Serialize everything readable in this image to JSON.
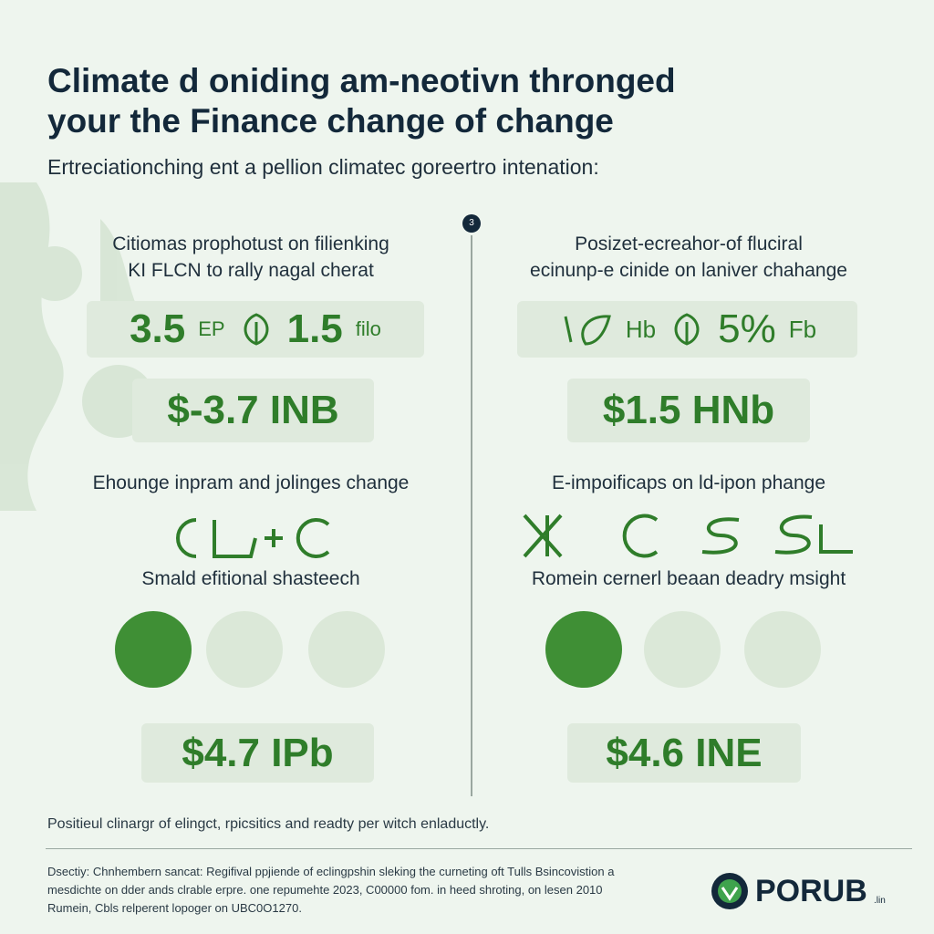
{
  "header": {
    "title_lines": [
      "Climate d oniding am-neotivn thronged",
      "your the Finance change of change"
    ],
    "subtitle": "Ertreciationching ent a pellion climatec goreertro intenation:"
  },
  "badge": "3",
  "panels": [
    {
      "heading_lines": [
        "Citiomas prophotust on filienking",
        "KI FLCN to rally nagal cherat"
      ],
      "stat_row": [
        "3.5",
        "EP",
        "1.5",
        "filo"
      ],
      "total": "$-3.7 INB",
      "section": "Ehounge inpram and jolinges change",
      "subsection": "Smald efitional shasteech",
      "amount": "$4.7 IPb"
    },
    {
      "heading_lines": [
        "Posizet-ecreahor-of fluciral",
        "ecinunp-e cinide on laniver chahange"
      ],
      "stat_row": [
        "Hb",
        "5%",
        "Fb"
      ],
      "total": "$1.5 HNb",
      "section": "E-impoificaps on ld-ipon phange",
      "subsection": "Romein cernerl beaan deadry msight",
      "amount": "$4.6 INE"
    }
  ],
  "footer": {
    "note": "Positieul clinargr of elingct, rpicsitics and readty per witch enlaductly.",
    "description_lines": [
      "Dsectiy: Chnhembern sancat: Regifival ppjiende of eclingpshin sleking the curneting oft Tulls Bsincovistion a",
      "mesdichte on dder ands clrable erpre. one repumehte 2023, C00000 fom. in heed shroting, on lesen 2010",
      "Rumein, Cbls relperent lopoger on UBC0O1270."
    ],
    "logo": "PORUB",
    "logo_suffix": ".lin"
  }
}
